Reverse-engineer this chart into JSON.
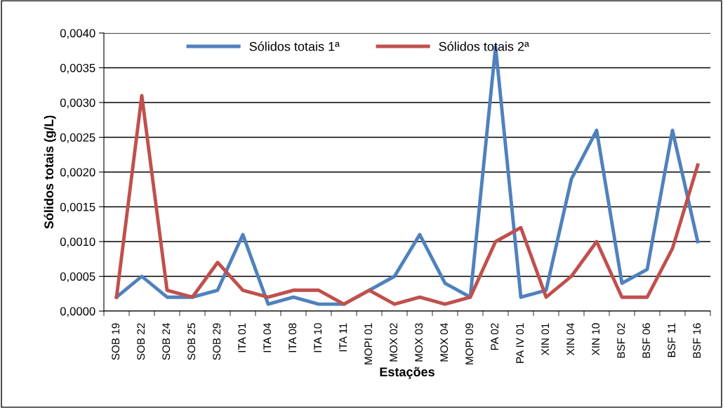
{
  "chart_data": {
    "type": "line",
    "xlabel": "Estações",
    "ylabel": "Sólidos totais (g/L)",
    "categories": [
      "SOB 19",
      "SOB 22",
      "SOB 24",
      "SOB 25",
      "SOB 29",
      "ITA 01",
      "ITA 04",
      "ITA 08",
      "ITA 10",
      "ITA 11",
      "MOPI 01",
      "MOX 02",
      "MOX 03",
      "MOX 04",
      "MOPI 09",
      "PA 02",
      "PA IV 01",
      "XIN 01",
      "XIN 04",
      "XIN 10",
      "BSF 02",
      "BSF 06",
      "BSF 11",
      "BSF 16"
    ],
    "series": [
      {
        "name": "Sólidos totais 1ª",
        "color": "#4f81bd",
        "values": [
          0.0002,
          0.0005,
          0.0002,
          0.0002,
          0.0003,
          0.0011,
          0.0001,
          0.0002,
          0.0001,
          0.0001,
          0.0003,
          0.0005,
          0.0011,
          0.0004,
          0.0002,
          0.0038,
          0.0002,
          0.0003,
          0.0019,
          0.0026,
          0.0004,
          0.0006,
          0.0026,
          0.001
        ]
      },
      {
        "name": "Sólidos totais 2ª",
        "color": "#c0504d",
        "values": [
          0.0002,
          0.0031,
          0.0003,
          0.0002,
          0.0007,
          0.0003,
          0.0002,
          0.0003,
          0.0003,
          0.0001,
          0.0003,
          0.0001,
          0.0002,
          0.0001,
          0.0002,
          0.001,
          0.0012,
          0.0002,
          0.0005,
          0.001,
          0.0002,
          0.0002,
          0.0009,
          0.0021
        ]
      }
    ],
    "ylim": [
      0,
      0.004
    ],
    "yticks": [
      {
        "value": 0,
        "label": "0,0000"
      },
      {
        "value": 0.0005,
        "label": "0,0005"
      },
      {
        "value": 0.001,
        "label": "0,0010"
      },
      {
        "value": 0.0015,
        "label": "0,0015"
      },
      {
        "value": 0.002,
        "label": "0,0020"
      },
      {
        "value": 0.0025,
        "label": "0,0025"
      },
      {
        "value": 0.003,
        "label": "0,0030"
      },
      {
        "value": 0.0035,
        "label": "0,0035"
      },
      {
        "value": 0.004,
        "label": "0,0040"
      }
    ],
    "grid": "y",
    "legend": "top",
    "marker": "none",
    "line_style": "solid"
  }
}
